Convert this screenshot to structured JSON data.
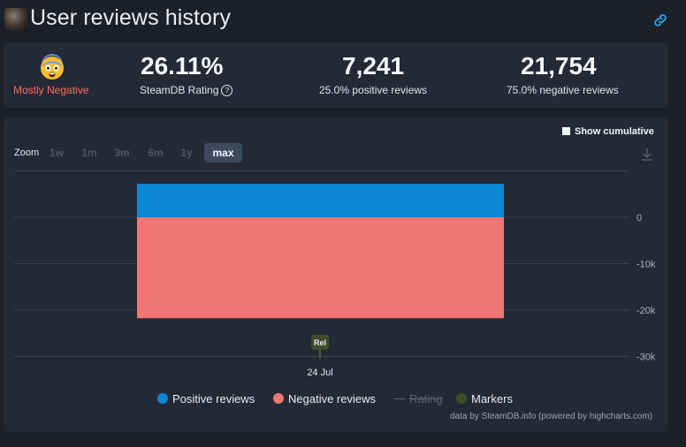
{
  "header": {
    "title": "User reviews history",
    "link_icon": "link-icon"
  },
  "stats": {
    "verdict": "Mostly Negative",
    "verdict_icon": "fearful-face-emoji",
    "rating": {
      "value": "26.11%",
      "label": "SteamDB Rating"
    },
    "positive": {
      "value": "7,241",
      "label": "25.0% positive reviews"
    },
    "negative": {
      "value": "21,754",
      "label": "75.0% negative reviews"
    }
  },
  "panel": {
    "cumulative_label": "Show cumulative",
    "zoom_label": "Zoom",
    "zoom_options": [
      "1w",
      "1m",
      "3m",
      "6m",
      "1y",
      "max"
    ],
    "zoom_selected": "max",
    "credits": "data by SteamDB.info (powered by highcharts.com)"
  },
  "chart_data": {
    "type": "bar",
    "categories": [
      "24 Jul"
    ],
    "series": [
      {
        "name": "Positive reviews",
        "values": [
          7241
        ],
        "color": "#0c87d5"
      },
      {
        "name": "Negative reviews",
        "values": [
          -21754
        ],
        "color": "#ef7674"
      }
    ],
    "legend": [
      "Positive reviews",
      "Negative reviews",
      "Rating",
      "Markers"
    ],
    "legend_disabled": [
      "Rating"
    ],
    "marker": {
      "label": "Rel",
      "at": "24 Jul",
      "color": "#3f4d2a"
    },
    "y_ticks": [
      0,
      -10000,
      -20000,
      -30000
    ],
    "y_tick_labels": [
      "0",
      "-10k",
      "-20k",
      "-30k"
    ],
    "x_tick_labels": [
      "24 Jul"
    ],
    "ylim": [
      -30000,
      10000
    ],
    "grid": true,
    "y_axis_side": "right"
  }
}
